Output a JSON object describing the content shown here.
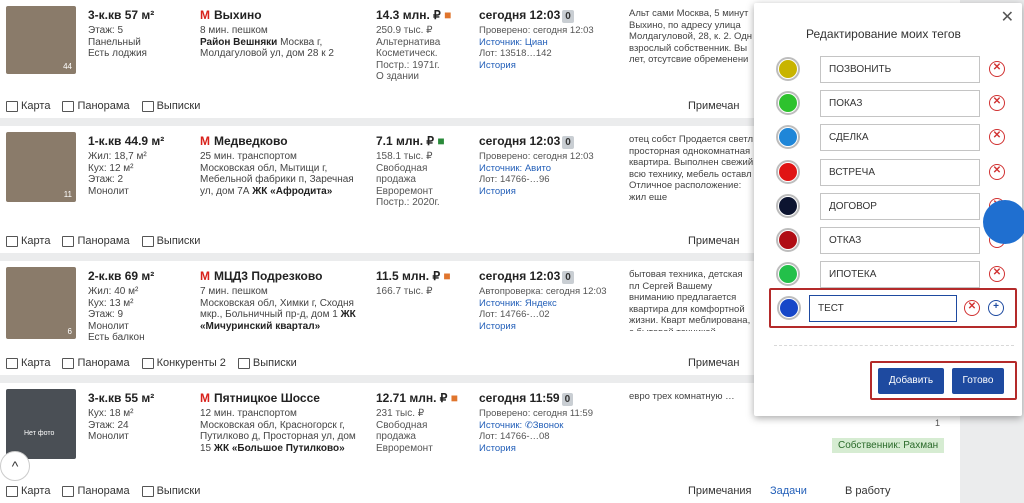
{
  "listings": [
    {
      "title": "3-к.кв 57 м²",
      "details": [
        "Этаж: 5",
        "Панельный",
        "Есть лоджия"
      ],
      "photo_count": "44",
      "metro": "Выхино",
      "transport": "8 мин. пешком",
      "address_bold": "Район Вешняки",
      "address": " Москва г, Молдагуловой ул, дом 28 к 2",
      "price": "14.3 млн. ₽",
      "price_info": [
        "250.9 тыс. ₽",
        "Альтернатива",
        "Косметическ.",
        "Постр.: 1971г.",
        "О здании"
      ],
      "date": "сегодня 12:03",
      "badge": "0",
      "src_lines": [
        "Проверено: сегодня 12:03",
        "Источник: Циан",
        "Лот: 13518…142",
        "История"
      ],
      "desc": "Альт сами Москва, 5 минут Выхино, по адресу улица Молдагуловой, 28, к. 2. Одн взрослый собственник. Вы лет, отсутсвие обременени",
      "actions": [
        "Карта",
        "Панорама",
        "Выписки"
      ],
      "notes": "Примечан"
    },
    {
      "title": "1-к.кв 44.9 м²",
      "details": [
        "Жил: 18,7 м²",
        "Кух: 12 м²",
        "Этаж: 2",
        "Монолит"
      ],
      "photo_count": "11",
      "metro": "Медведково",
      "transport": "25 мин. транспортом",
      "address_bold": "",
      "address": "Московская обл, Мытищи г, Мебельной фабрики п, Заречная ул, дом 7А ",
      "complex": "ЖК «Афродита»",
      "price": "7.1 млн. ₽",
      "price_info": [
        "158.1 тыс. ₽",
        "Свободная",
        "продажа",
        "Евроремонт",
        "Постр.: 2020г."
      ],
      "date": "сегодня 12:03",
      "badge": "0",
      "src_lines": [
        "Проверено: сегодня 12:03",
        "Источник: Авито",
        "Лот: 14766-…96",
        "История"
      ],
      "desc": "отец собст Продается светл просторная однокомнатная квартира. Выполнен свежий всю технику, мебель оставл Отличное расположение: жил еще",
      "actions": [
        "Карта",
        "Панорама",
        "Выписки"
      ],
      "notes": "Примечан"
    },
    {
      "title": "2-к.кв 69 м²",
      "details": [
        "Жил: 40 м²",
        "Кух: 13 м²",
        "Этаж: 9",
        "Монолит",
        "Есть балкон"
      ],
      "photo_count": "6",
      "metro": "МЦД3 Подрезково",
      "transport": "7 мин. пешком",
      "address_bold": "",
      "address": "Московская обл, Химки г, Сходня мкр., Больничный пр-д, дом 1 ",
      "complex": "ЖК «Мичуринский квартал»",
      "price": "11.5 млн. ₽",
      "price_info": [
        "166.7 тыс. ₽"
      ],
      "date": "сегодня 12:03",
      "badge": "0",
      "src_lines": [
        "Автопроверка: сегодня 12:03",
        "Источник: Яндекс",
        "Лот: 14766-…02",
        "История"
      ],
      "desc": "бытовая техника, детская пл Сергей Вашему вниманию предлагается квартира для комфортной жизни. Кварт меблирована, с бытовой техникой…",
      "actions": [
        "Карта",
        "Панорама",
        "Конкуренты 2",
        "Выписки"
      ],
      "notes": "Примечан"
    },
    {
      "title": "3-к.кв 55 м²",
      "details": [
        "Кух: 18 м²",
        "Этаж: 24",
        "Монолит"
      ],
      "photo_label": "Нет фото",
      "metro": "Пятницкое Шоссе",
      "transport": "12 мин. транспортом",
      "address_bold": "",
      "address": "Московская обл, Красногорск г, Путилково д, Просторная ул, дом 15 ",
      "complex": "ЖК «Большое Путилково»",
      "price": "12.71 млн. ₽",
      "price_info": [
        "231 тыс. ₽",
        "Свободная",
        "продажа",
        "Евроремонт"
      ],
      "date": "сегодня 11:59",
      "badge": "0",
      "src_lines": [
        "Проверено: сегодня 11:59",
        "Источник: ✆Звонок",
        "Лот: 14766-…08",
        "История"
      ],
      "desc": "евро трех комнатную …",
      "actions": [
        "Карта",
        "Панорама",
        "Выписки"
      ],
      "notes": "Примечания",
      "tasks": "Задачи",
      "work": "В работу",
      "owner": "Собственник: Рахман",
      "views": "1"
    }
  ],
  "modal": {
    "title": "Редактирование моих тегов",
    "tags": [
      {
        "label": "ПОЗВОНИТЬ",
        "color": "#c8b400"
      },
      {
        "label": "ПОКАЗ",
        "color": "#2ec22e"
      },
      {
        "label": "СДЕЛКА",
        "color": "#1f86d8"
      },
      {
        "label": "ВСТРЕЧА",
        "color": "#e01414"
      },
      {
        "label": "ДОГОВОР",
        "color": "#0c1430"
      },
      {
        "label": "ОТКАЗ",
        "color": "#b00d14"
      },
      {
        "label": "ИПОТЕКА",
        "color": "#23c04a"
      }
    ],
    "new_tag": {
      "value": "ТЕСТ",
      "color": "#1646c8"
    },
    "add_label": "Добавить",
    "done_label": "Готово"
  }
}
